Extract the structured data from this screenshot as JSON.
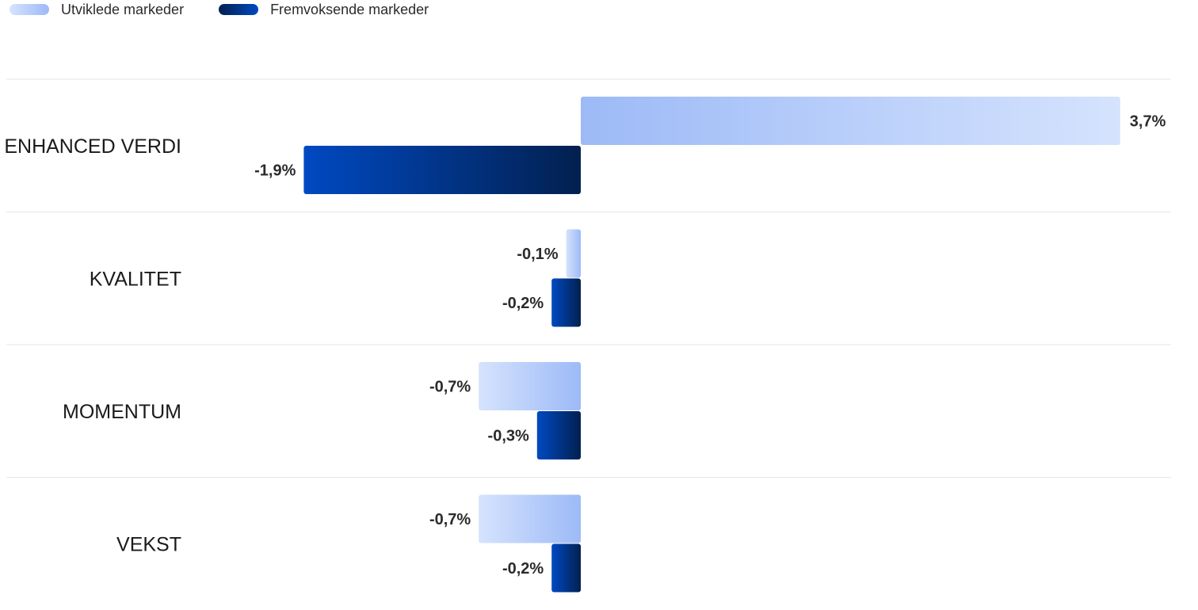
{
  "chart_data": {
    "type": "bar",
    "orientation": "horizontal",
    "categories": [
      "ENHANCED VERDI",
      "KVALITET",
      "MOMENTUM",
      "VEKST"
    ],
    "series": [
      {
        "name": "Utviklede markeder",
        "values": [
          3.7,
          -0.1,
          -0.7,
          -0.7
        ],
        "value_labels": [
          "3,7%",
          "-0,1%",
          "-0,7%",
          "-0,7%"
        ],
        "color": "#a3bff8"
      },
      {
        "name": "Fremvoksende markeder",
        "values": [
          -1.9,
          -0.2,
          -0.3,
          -0.2
        ],
        "value_labels": [
          "-1,9%",
          "-0,2%",
          "-0,3%",
          "-0,2%"
        ],
        "color": "#06265e"
      }
    ],
    "xlim": [
      -2.0,
      3.8
    ],
    "grid": false,
    "legend_position": "top-left",
    "title": "",
    "xlabel": "",
    "ylabel": ""
  },
  "legend": {
    "developed_label": "Utviklede markeder",
    "emerging_label": "Fremvoksende markeder"
  },
  "colors": {
    "developed_dark": "#9dbaf7",
    "developed_light": "#d5e3fd",
    "emerging_bright": "#0049c2",
    "emerging_dark": "#02204f",
    "divider": "#e6e6e6"
  }
}
